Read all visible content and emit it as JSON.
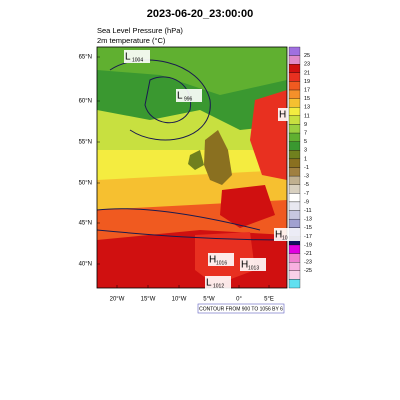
{
  "header": {
    "title": "2023-06-20_23:00:00",
    "subtitle_1": "Sea Level Pressure (hPa)",
    "subtitle_2": "2m temperature (°C)"
  },
  "lat_labels": [
    "65°N",
    "60°N",
    "55°N",
    "50°N",
    "45°N",
    "40°N"
  ],
  "lon_labels": [
    "20°W",
    "15°W",
    "10°W",
    "5°W",
    "0°",
    "5°E"
  ],
  "colorbar": {
    "labels": [
      25,
      23,
      21,
      19,
      17,
      15,
      13,
      11,
      9,
      7,
      5,
      3,
      1,
      -1,
      -3,
      -5,
      -7,
      -9,
      -11,
      -13,
      -15,
      -17,
      -19,
      -21,
      -23,
      -25
    ],
    "colors": [
      "#a070e0",
      "#e08ac8",
      "#d01010",
      "#e83020",
      "#f05a20",
      "#f4902a",
      "#f6c030",
      "#f4ec40",
      "#c8e040",
      "#9ad040",
      "#60b030",
      "#3a9830",
      "#70801e",
      "#8a7020",
      "#a08040",
      "#c0b090",
      "#d8d0c0",
      "#ffffff",
      "#e8e8f0",
      "#c8c8e0",
      "#a0a0d0",
      "#4040a0",
      "#101060",
      "#e000e0",
      "#f080d0",
      "#f8b0e0",
      "#f8d0e8",
      "#60e0f0"
    ]
  },
  "pressure_centers": [
    {
      "symbol": "L",
      "value": "1004"
    },
    {
      "symbol": "L",
      "value": "996"
    },
    {
      "symbol": "H",
      "value": "1016"
    },
    {
      "symbol": "H",
      "value": "1013"
    },
    {
      "symbol": "L",
      "value": "1012"
    },
    {
      "symbol": "H",
      "value": ""
    },
    {
      "symbol": "H",
      "value": "10"
    }
  ],
  "contour_note": "CONTOUR FROM 900 TO 1056 BY 6"
}
